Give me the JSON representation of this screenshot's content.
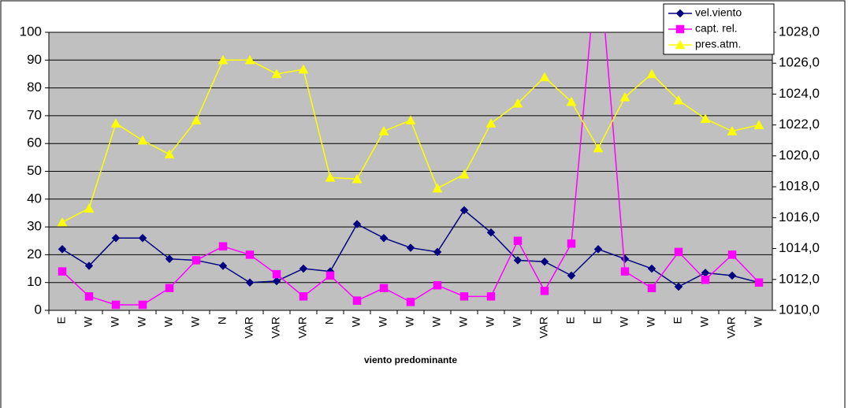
{
  "chart_data": {
    "type": "line",
    "x_label": "viento predominante",
    "categories": [
      "E",
      "W",
      "W",
      "W",
      "W",
      "W",
      "N",
      "VAR",
      "VAR",
      "VAR",
      "N",
      "W",
      "W",
      "W",
      "W",
      "W",
      "W",
      "W",
      "VAR",
      "E",
      "E",
      "W",
      "W",
      "E",
      "W",
      "VAR",
      "W"
    ],
    "series": [
      {
        "name": "vel.viento",
        "color": "#000080",
        "marker": "diamond",
        "values": [
          22,
          16,
          26,
          26,
          18.5,
          18,
          16,
          10,
          10.5,
          15,
          14,
          31,
          26,
          22.5,
          21,
          36,
          28,
          18,
          17.5,
          12.5,
          22,
          18.5,
          15,
          8.5,
          13.5,
          12.5,
          10
        ]
      },
      {
        "name": "capt. rel.",
        "color": "#ff00ff",
        "marker": "square",
        "values": [
          14,
          5,
          2,
          2,
          8,
          18,
          23,
          20,
          13,
          5,
          12.5,
          3.5,
          8,
          3,
          9,
          5,
          5,
          25,
          7,
          24,
          130,
          14,
          8,
          21,
          11,
          20,
          10
        ]
      },
      {
        "name": "pres.atm.",
        "color": "#ffff00",
        "marker": "triangle",
        "axis": "y2",
        "values": [
          1015.7,
          1016.6,
          1022.1,
          1021.0,
          1020.1,
          1022.3,
          1026.2,
          1026.2,
          1025.3,
          1025.6,
          1018.6,
          1018.5,
          1021.6,
          1022.3,
          1017.9,
          1018.8,
          1022.1,
          1023.4,
          1025.1,
          1023.5,
          1020.5,
          1023.8,
          1025.3,
          1023.6,
          1022.4,
          1021.6,
          1022.0
        ]
      }
    ],
    "ylim": [
      0,
      100
    ],
    "yticks": [
      0,
      10,
      20,
      30,
      40,
      50,
      60,
      70,
      80,
      90,
      100
    ],
    "y2lim": [
      1010,
      1028
    ],
    "y2ticks": [
      {
        "value": 1010,
        "label": "1010,0"
      },
      {
        "value": 1012,
        "label": "1012,0"
      },
      {
        "value": 1014,
        "label": "1014,0"
      },
      {
        "value": 1016,
        "label": "1016,0"
      },
      {
        "value": 1018,
        "label": "1018,0"
      },
      {
        "value": 1020,
        "label": "1020,0"
      },
      {
        "value": 1022,
        "label": "1022,0"
      },
      {
        "value": 1024,
        "label": "1024,0"
      },
      {
        "value": 1026,
        "label": "1026,0"
      },
      {
        "value": 1028,
        "label": "1028,0"
      }
    ],
    "grid": true,
    "legend": "top-right",
    "plot_background": "#c0c0c0"
  }
}
